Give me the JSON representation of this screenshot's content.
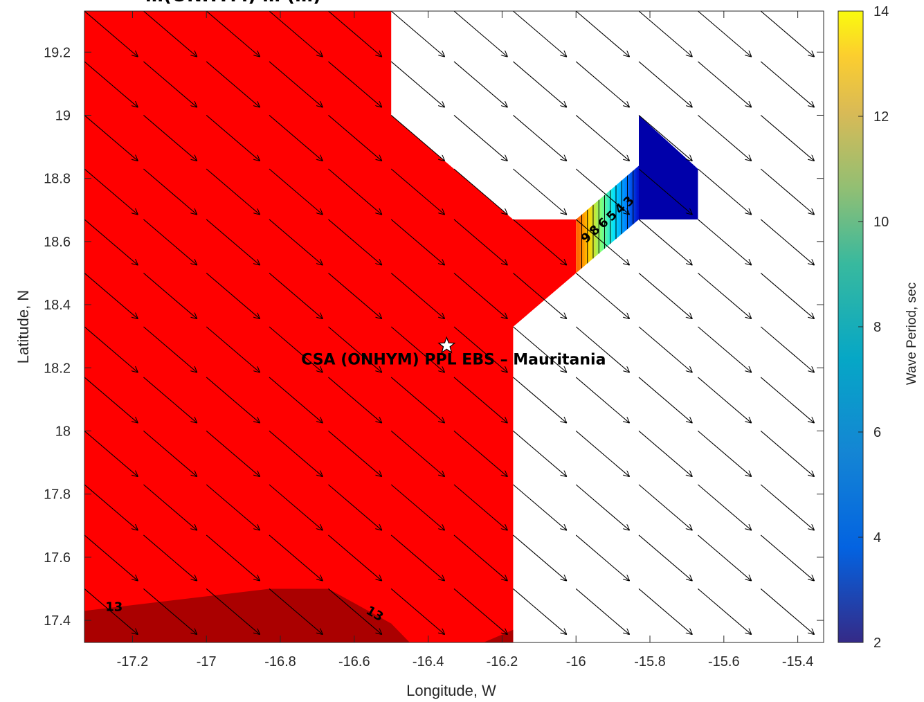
{
  "chart_data": {
    "type": "heatmap",
    "title": "…(ONHYM) … (…)",
    "xlabel": "Longitude, W",
    "ylabel": "Latitude, N",
    "xlim": [
      -17.33,
      -15.33
    ],
    "ylim": [
      17.33,
      19.33
    ],
    "xticks": [
      -17.2,
      -17,
      -16.8,
      -16.6,
      -16.4,
      -16.2,
      -16,
      -15.8,
      -15.6,
      -15.4
    ],
    "yticks": [
      17.4,
      17.6,
      17.8,
      18,
      18.2,
      18.4,
      18.6,
      18.8,
      19,
      19.2
    ],
    "colorbar": {
      "label": "Wave Period, sec",
      "range": [
        2,
        14
      ],
      "ticks": [
        2,
        4,
        6,
        8,
        10,
        12,
        14
      ],
      "colormap": "parula"
    },
    "regions": [
      {
        "name": "period-13-14-zone",
        "value": 14,
        "color": "#ff0000",
        "polygon": [
          [
            -17.33,
            19.33
          ],
          [
            -16.5,
            19.33
          ],
          [
            -16.5,
            19.0
          ],
          [
            -16.17,
            18.67
          ],
          [
            -16.0,
            18.67
          ],
          [
            -16.0,
            18.5
          ],
          [
            -16.17,
            18.33
          ],
          [
            -16.17,
            17.33
          ],
          [
            -17.33,
            17.33
          ]
        ]
      },
      {
        "name": "period-13-zone",
        "value": 13,
        "color": "#aa0000",
        "polygon": [
          [
            -17.33,
            17.43
          ],
          [
            -16.83,
            17.5
          ],
          [
            -16.67,
            17.5
          ],
          [
            -16.5,
            17.39
          ],
          [
            -16.45,
            17.33
          ],
          [
            -17.33,
            17.33
          ]
        ]
      },
      {
        "name": "period-13-corner",
        "value": 13,
        "color": "#aa0000",
        "polygon": [
          [
            -16.25,
            17.33
          ],
          [
            -16.17,
            17.37
          ],
          [
            -16.17,
            17.33
          ]
        ]
      },
      {
        "name": "low-period-zone",
        "value": 2.5,
        "color": "#0000aa",
        "polygon": [
          [
            -15.83,
            19.0
          ],
          [
            -15.67,
            18.83
          ],
          [
            -15.67,
            18.67
          ],
          [
            -15.83,
            18.67
          ],
          [
            -15.83,
            18.84
          ]
        ]
      }
    ],
    "gradient_band": {
      "from": [
        [
          -16.0,
          18.5
        ],
        [
          -16.0,
          18.67
        ]
      ],
      "to": [
        [
          -15.83,
          18.67
        ],
        [
          -15.83,
          18.84
        ]
      ],
      "value_from": 14,
      "value_to": 2.5,
      "contour_labels": [
        "9",
        "8",
        "6",
        "5",
        "4",
        "3"
      ]
    },
    "contour_labels": [
      {
        "text": "13",
        "lon": -17.25,
        "lat": 17.43
      },
      {
        "text": "13",
        "lon": -16.55,
        "lat": 17.41
      }
    ],
    "site": {
      "label": "CSA (ONHYM) PPL EBS  – Mauritania",
      "lon": -16.35,
      "lat": 18.27,
      "marker": "star"
    },
    "vectors": {
      "lons": [
        -17.33,
        -17.17,
        -17.0,
        -16.83,
        -16.67,
        -16.5,
        -16.33,
        -16.17,
        -16.0,
        -15.83,
        -15.67,
        -15.5
      ],
      "lats": [
        17.33,
        17.5,
        17.67,
        17.83,
        18.0,
        18.17,
        18.33,
        18.5,
        18.67,
        18.83,
        19.0,
        19.17,
        19.33
      ],
      "dx_deg": 0.145,
      "dy_deg": -0.145
    }
  }
}
